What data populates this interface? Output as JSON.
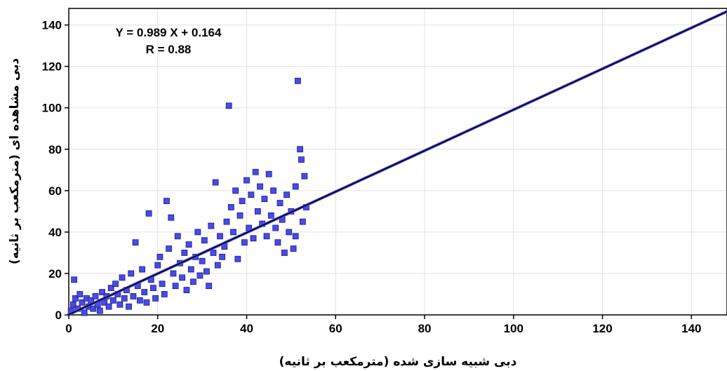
{
  "chart_data": {
    "type": "scatter",
    "title": "",
    "xlabel": "دبی شبیه سازی شده (مترمکعب بر ثانیه)",
    "ylabel": "دبی مشاهده ای (مترمکعب بر ثانیه)",
    "xlim": [
      0,
      148
    ],
    "ylim": [
      0,
      148
    ],
    "xticks": [
      0,
      20,
      40,
      60,
      80,
      100,
      120,
      140
    ],
    "yticks": [
      0,
      20,
      40,
      60,
      80,
      100,
      120,
      140
    ],
    "grid": true,
    "annotations": [
      "Y = 0.989 X + 0.164",
      "R = 0.88"
    ],
    "fit_line": {
      "slope": 0.989,
      "intercept": 0.164
    },
    "marker_color": "#4a4ae6",
    "marker_edge": "#1a1a8a",
    "line_color": "#000000",
    "series": [
      {
        "points": [
          [
            0.5,
            2
          ],
          [
            1,
            5
          ],
          [
            1.5,
            8
          ],
          [
            1.2,
            17
          ],
          [
            2,
            3
          ],
          [
            2.5,
            10
          ],
          [
            3,
            6
          ],
          [
            3.5,
            1
          ],
          [
            4,
            8
          ],
          [
            4.5,
            4
          ],
          [
            5,
            7
          ],
          [
            5.5,
            3
          ],
          [
            6,
            9
          ],
          [
            6.5,
            5
          ],
          [
            7,
            2
          ],
          [
            7.5,
            11
          ],
          [
            8,
            6
          ],
          [
            8.5,
            9
          ],
          [
            9,
            4
          ],
          [
            9.5,
            13
          ],
          [
            10,
            7
          ],
          [
            10.5,
            15
          ],
          [
            11,
            10
          ],
          [
            11.5,
            5
          ],
          [
            12,
            18
          ],
          [
            12.5,
            8
          ],
          [
            13,
            12
          ],
          [
            13.5,
            4
          ],
          [
            14,
            20
          ],
          [
            14.5,
            9
          ],
          [
            15,
            35
          ],
          [
            15.5,
            14
          ],
          [
            16,
            7
          ],
          [
            16.5,
            22
          ],
          [
            17,
            11
          ],
          [
            17.5,
            6
          ],
          [
            18,
            49
          ],
          [
            18.5,
            17
          ],
          [
            19,
            13
          ],
          [
            19.5,
            8
          ],
          [
            20,
            24
          ],
          [
            20.5,
            28
          ],
          [
            21,
            15
          ],
          [
            21.5,
            10
          ],
          [
            22,
            55
          ],
          [
            22.5,
            32
          ],
          [
            23,
            47
          ],
          [
            23.5,
            20
          ],
          [
            24,
            14
          ],
          [
            24.5,
            38
          ],
          [
            25,
            25
          ],
          [
            25.5,
            18
          ],
          [
            26,
            30
          ],
          [
            26.5,
            12
          ],
          [
            27,
            34
          ],
          [
            27.5,
            22
          ],
          [
            28,
            16
          ],
          [
            28.5,
            28
          ],
          [
            29,
            40
          ],
          [
            29.5,
            19
          ],
          [
            30,
            26
          ],
          [
            30.5,
            36
          ],
          [
            31,
            21
          ],
          [
            31.5,
            14
          ],
          [
            32,
            43
          ],
          [
            32.5,
            30
          ],
          [
            33,
            64
          ],
          [
            33.5,
            24
          ],
          [
            34,
            38
          ],
          [
            34.5,
            28
          ],
          [
            35,
            33
          ],
          [
            35.5,
            45
          ],
          [
            36,
            101
          ],
          [
            36.5,
            52
          ],
          [
            37,
            40
          ],
          [
            37.5,
            60
          ],
          [
            38,
            27
          ],
          [
            38.5,
            48
          ],
          [
            39,
            55
          ],
          [
            39.5,
            35
          ],
          [
            40,
            65
          ],
          [
            40.5,
            42
          ],
          [
            41,
            58
          ],
          [
            41.5,
            37
          ],
          [
            42,
            69
          ],
          [
            42.5,
            50
          ],
          [
            43,
            62
          ],
          [
            43.5,
            44
          ],
          [
            44,
            56
          ],
          [
            44.5,
            38
          ],
          [
            45,
            68
          ],
          [
            45.5,
            48
          ],
          [
            46,
            60
          ],
          [
            46.5,
            42
          ],
          [
            47,
            35
          ],
          [
            47.5,
            54
          ],
          [
            48,
            46
          ],
          [
            48.5,
            30
          ],
          [
            49,
            58
          ],
          [
            49.5,
            40
          ],
          [
            50,
            50
          ],
          [
            50.5,
            32
          ],
          [
            51,
            62
          ],
          [
            51.5,
            113
          ],
          [
            52,
            80
          ],
          [
            52.3,
            75
          ],
          [
            52.6,
            45
          ],
          [
            53,
            67
          ],
          [
            53.4,
            52
          ],
          [
            51,
            38
          ]
        ]
      }
    ]
  }
}
